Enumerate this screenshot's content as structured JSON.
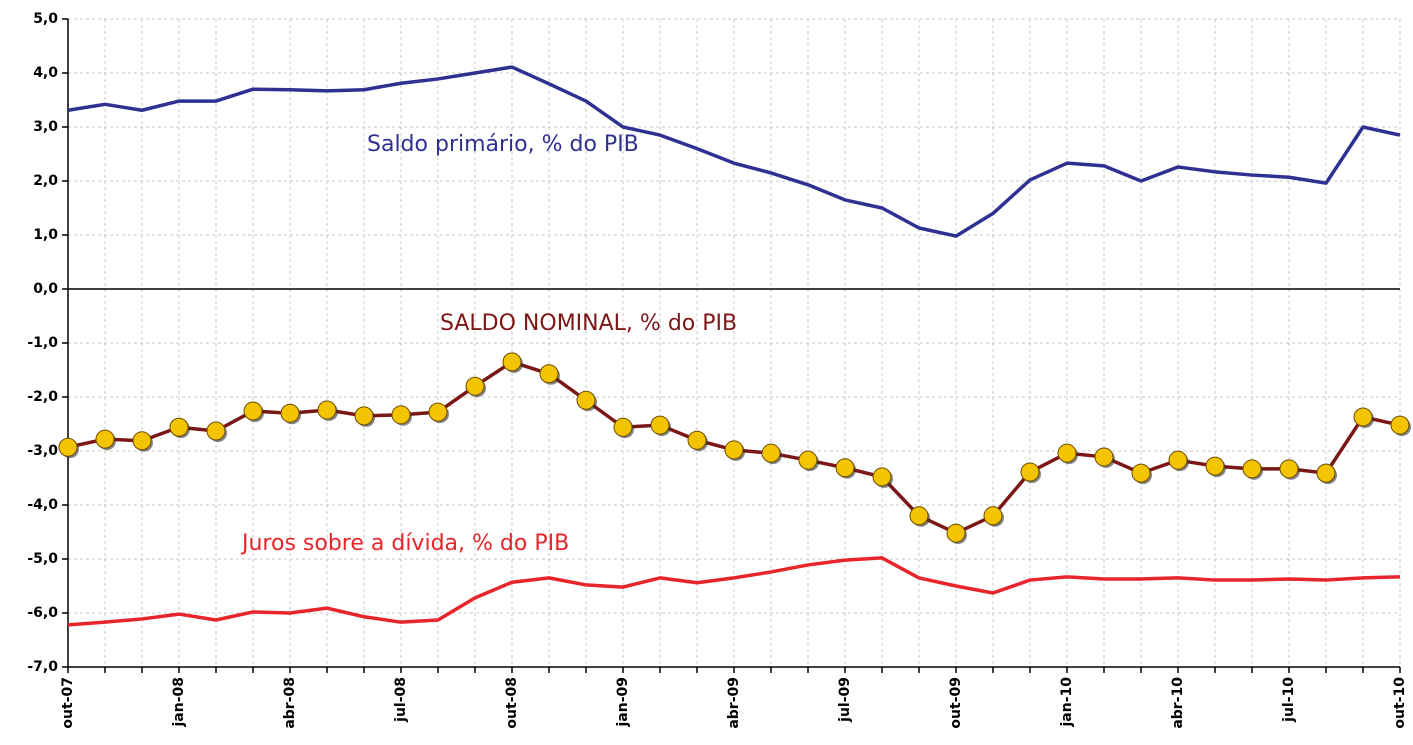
{
  "chart_data": {
    "type": "line",
    "categories": [
      "out-07",
      null,
      null,
      "jan-08",
      null,
      null,
      "abr-08",
      null,
      null,
      "jul-08",
      null,
      null,
      "out-08",
      null,
      null,
      "jan-09",
      null,
      null,
      "abr-09",
      null,
      null,
      "jul-09",
      null,
      null,
      "out-09",
      null,
      null,
      "jan-10",
      null,
      null,
      "abr-10",
      null,
      null,
      "jul-10",
      null,
      null,
      "out-10"
    ],
    "ylim": [
      -7,
      5
    ],
    "yticks": [
      {
        "value": -7,
        "label": "-7,0"
      },
      {
        "value": -6,
        "label": "-6,0"
      },
      {
        "value": -5,
        "label": "-5,0"
      },
      {
        "value": -4,
        "label": "-4,0"
      },
      {
        "value": -3,
        "label": "-3,0"
      },
      {
        "value": -2,
        "label": "-2,0"
      },
      {
        "value": -1,
        "label": "-1,0"
      },
      {
        "value": 0,
        "label": "0,0"
      },
      {
        "value": 1,
        "label": "1,0"
      },
      {
        "value": 2,
        "label": "2,0"
      },
      {
        "value": 3,
        "label": "3,0"
      },
      {
        "value": 4,
        "label": "4,0"
      },
      {
        "value": 5,
        "label": "5,0"
      }
    ],
    "grid": true,
    "series": [
      {
        "name": "Saldo primário, % do PIB",
        "color": "#2e3192",
        "markers": false,
        "values": [
          3.31,
          3.42,
          3.31,
          3.48,
          3.48,
          3.7,
          3.69,
          3.67,
          3.69,
          3.81,
          3.89,
          4.0,
          4.11,
          3.8,
          3.48,
          3.0,
          2.85,
          2.6,
          2.33,
          2.15,
          1.93,
          1.65,
          1.5,
          1.13,
          0.98,
          1.4,
          2.02,
          2.33,
          2.28,
          2.0,
          2.26,
          2.17,
          2.11,
          2.07,
          1.96,
          3.0,
          2.85
        ]
      },
      {
        "name": "SALDO NOMINAL, % do PIB",
        "color": "#7b1717",
        "markers": true,
        "values": [
          -2.93,
          -2.78,
          -2.81,
          -2.56,
          -2.63,
          -2.26,
          -2.3,
          -2.24,
          -2.35,
          -2.33,
          -2.28,
          -1.8,
          -1.35,
          -1.57,
          -2.06,
          -2.56,
          -2.52,
          -2.8,
          -2.98,
          -3.04,
          -3.17,
          -3.31,
          -3.48,
          -4.2,
          -4.52,
          -4.2,
          -3.39,
          -3.04,
          -3.11,
          -3.41,
          -3.17,
          -3.28,
          -3.33,
          -3.33,
          -3.41,
          -2.37,
          -2.52
        ]
      },
      {
        "name": "Juros sobre a dívida, % do PIB",
        "color": "#e8252a",
        "markers": false,
        "values": [
          -6.22,
          -6.17,
          -6.11,
          -6.02,
          -6.13,
          -5.98,
          -6.0,
          -5.91,
          -6.07,
          -6.17,
          -6.13,
          -5.72,
          -5.43,
          -5.35,
          -5.48,
          -5.52,
          -5.35,
          -5.44,
          -5.35,
          -5.24,
          -5.11,
          -5.02,
          -4.98,
          -5.35,
          -5.5,
          -5.63,
          -5.39,
          -5.33,
          -5.37,
          -5.37,
          -5.35,
          -5.39,
          -5.39,
          -5.37,
          -5.39,
          -5.35,
          -5.33
        ]
      }
    ]
  }
}
